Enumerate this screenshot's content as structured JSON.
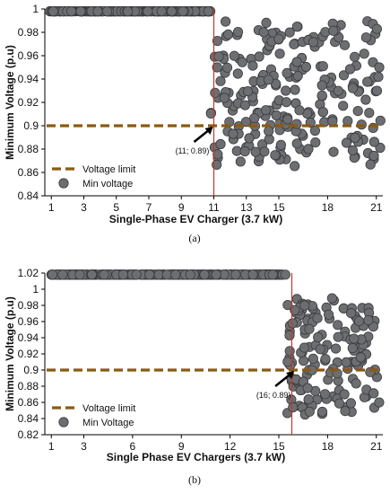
{
  "chart_data": [
    {
      "type": "scatter",
      "panel_label": "(a)",
      "xlabel": "Single-Phase EV Charger (3.7 kW)",
      "ylabel": "Minimum Voltage  (p.u)",
      "xlim": [
        0.6,
        21.4
      ],
      "ylim": [
        0.84,
        1.0
      ],
      "xticks": [
        1,
        3,
        5,
        7,
        9,
        11,
        13,
        15,
        18,
        21
      ],
      "yticks": [
        0.84,
        0.86,
        0.88,
        0.9,
        0.92,
        0.94,
        0.96,
        0.98,
        1.0
      ],
      "ytick_labels": [
        "0.84",
        "0.86",
        "0.88",
        "0.9",
        "0.92",
        "0.94",
        "0.96",
        "0.98",
        "1"
      ],
      "voltage_limit": 0.9,
      "marker_x": 11,
      "annotation": {
        "text": "(11; 0.89)",
        "x": 11,
        "y": 0.89
      },
      "legend": {
        "position": "bottom-left",
        "entries": [
          "Voltage limit",
          "Min voltage"
        ]
      },
      "series": [
        {
          "name": "Min voltage",
          "seed": 11,
          "breakpoint": 10.8,
          "before": {
            "min": 0.905,
            "max": 0.997
          },
          "after": {
            "min": 0.865,
            "max": 0.99
          },
          "n_before": 330,
          "n_after": 230
        }
      ],
      "colors": {
        "dot": "#6d6e71",
        "limit": "#8a5a14",
        "vline": "#c0392b"
      }
    },
    {
      "type": "scatter",
      "panel_label": "(b)",
      "xlabel": "Single Phase EV Chargers (3.7 kW)",
      "ylabel": "Minimum Voltage  (p.u)",
      "xlim": [
        0.6,
        21.4
      ],
      "ylim": [
        0.82,
        1.02
      ],
      "xticks": [
        1,
        3,
        6,
        9,
        12,
        15,
        18,
        21
      ],
      "yticks": [
        0.82,
        0.84,
        0.86,
        0.88,
        0.9,
        0.92,
        0.94,
        0.96,
        0.98,
        1.0,
        1.02
      ],
      "ytick_labels": [
        "0.82",
        "0.84",
        "0.86",
        "0.88",
        "0.9",
        "0.92",
        "0.94",
        "0.96",
        "0.98",
        "1",
        "1.02"
      ],
      "voltage_limit": 0.9,
      "marker_x": 15.8,
      "annotation": {
        "text": "(16; 0.89)",
        "x": 16,
        "y": 0.89
      },
      "legend": {
        "position": "bottom-left",
        "entries": [
          "Voltage limit",
          "Min Voltage"
        ]
      },
      "series": [
        {
          "name": "Min Voltage",
          "seed": 29,
          "breakpoint": 15.5,
          "before": {
            "min": 0.905,
            "max": 0.997
          },
          "after": {
            "min": 0.845,
            "max": 0.99
          },
          "n_before": 420,
          "n_after": 150
        }
      ],
      "colors": {
        "dot": "#6d6e71",
        "limit": "#8a5a14",
        "vline": "#c0392b"
      }
    }
  ]
}
